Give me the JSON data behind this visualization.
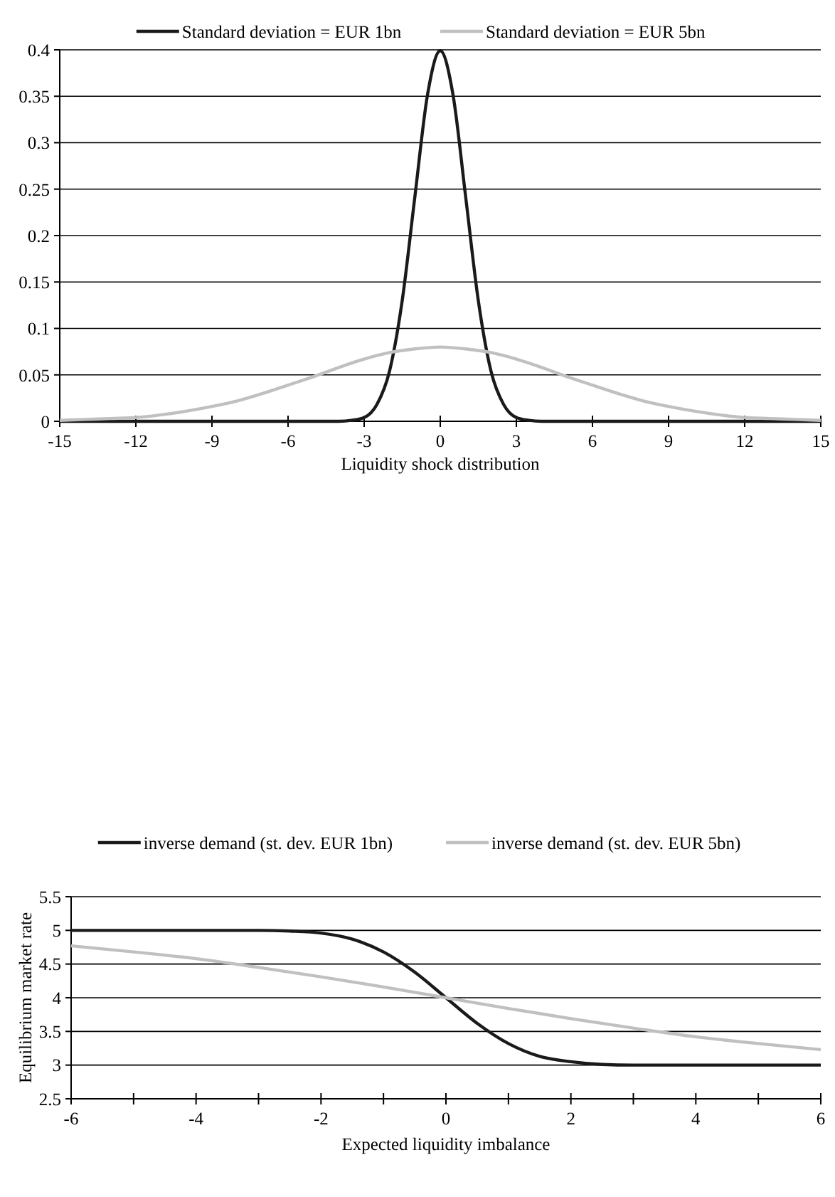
{
  "chart_data": [
    {
      "type": "line",
      "xlabel": "Liquidity shock distribution",
      "xlim": [
        -15,
        15
      ],
      "xticks": [
        -15,
        -12,
        -9,
        -6,
        -3,
        0,
        3,
        6,
        9,
        12,
        15
      ],
      "ylim": [
        0,
        0.4
      ],
      "yticks": [
        0,
        0.05,
        0.1,
        0.15,
        0.2,
        0.25,
        0.3,
        0.35,
        0.4
      ],
      "grid": "y",
      "legend": "top",
      "line_style": "solid",
      "marker": "none",
      "series": [
        {
          "name": "Standard deviation = EUR 1bn",
          "color": "#1a1a1a",
          "x": [
            -15,
            -4,
            -3.5,
            -3,
            -2.5,
            -2,
            -1.5,
            -1,
            -0.5,
            0,
            0.5,
            1,
            1.5,
            2,
            2.5,
            3,
            3.5,
            4,
            15
          ],
          "values": [
            0,
            0,
            0.001,
            0.004,
            0.018,
            0.054,
            0.13,
            0.242,
            0.352,
            0.399,
            0.352,
            0.242,
            0.13,
            0.054,
            0.018,
            0.004,
            0.001,
            0,
            0
          ]
        },
        {
          "name": "Standard deviation = EUR 5bn",
          "color": "#c0c0c0",
          "x": [
            -15,
            -14,
            -13,
            -12,
            -11,
            -10,
            -9,
            -8,
            -7,
            -6,
            -5,
            -4,
            -3,
            -2,
            -1,
            0,
            1,
            2,
            3,
            4,
            5,
            6,
            7,
            8,
            9,
            10,
            11,
            12,
            13,
            14,
            15
          ],
          "values": [
            0.001,
            0.002,
            0.003,
            0.004,
            0.007,
            0.011,
            0.016,
            0.022,
            0.03,
            0.039,
            0.048,
            0.058,
            0.067,
            0.074,
            0.078,
            0.08,
            0.078,
            0.074,
            0.067,
            0.058,
            0.048,
            0.039,
            0.03,
            0.022,
            0.016,
            0.011,
            0.007,
            0.004,
            0.003,
            0.002,
            0.001
          ]
        }
      ]
    },
    {
      "type": "line",
      "xlabel": "Expected liquidity imbalance",
      "ylabel": "Equilibrium market rate",
      "xlim": [
        -6,
        6
      ],
      "xticks": [
        -6,
        {
          "value": -5,
          "label": null
        },
        -4,
        {
          "value": -3,
          "label": null
        },
        -2,
        {
          "value": -1,
          "label": null
        },
        0,
        {
          "value": 1,
          "label": null
        },
        2,
        {
          "value": 3,
          "label": null
        },
        4,
        {
          "value": 5,
          "label": null
        },
        6
      ],
      "ylim": [
        2.5,
        5.5
      ],
      "yticks": [
        2.5,
        3,
        3.5,
        4,
        4.5,
        5,
        5.5
      ],
      "grid": "y",
      "legend": "top",
      "line_style": "solid",
      "marker": "none",
      "series": [
        {
          "name": "inverse demand (st. dev. EUR 1bn)",
          "color": "#1a1a1a",
          "x": [
            -6,
            -3,
            -2.5,
            -2,
            -1.5,
            -1,
            -0.5,
            0,
            0.5,
            1,
            1.5,
            2,
            2.5,
            3,
            6
          ],
          "values": [
            5,
            5,
            4.99,
            4.96,
            4.87,
            4.68,
            4.38,
            4,
            3.62,
            3.32,
            3.13,
            3.05,
            3.01,
            3,
            3
          ]
        },
        {
          "name": "inverse demand (st. dev. EUR 5bn)",
          "color": "#c0c0c0",
          "x": [
            -6,
            -5,
            -4,
            -3,
            -2,
            -1,
            0,
            1,
            2,
            3,
            4,
            5,
            6
          ],
          "values": [
            4.77,
            4.68,
            4.58,
            4.45,
            4.31,
            4.16,
            4,
            3.84,
            3.69,
            3.55,
            3.42,
            3.32,
            3.23
          ]
        }
      ]
    }
  ]
}
